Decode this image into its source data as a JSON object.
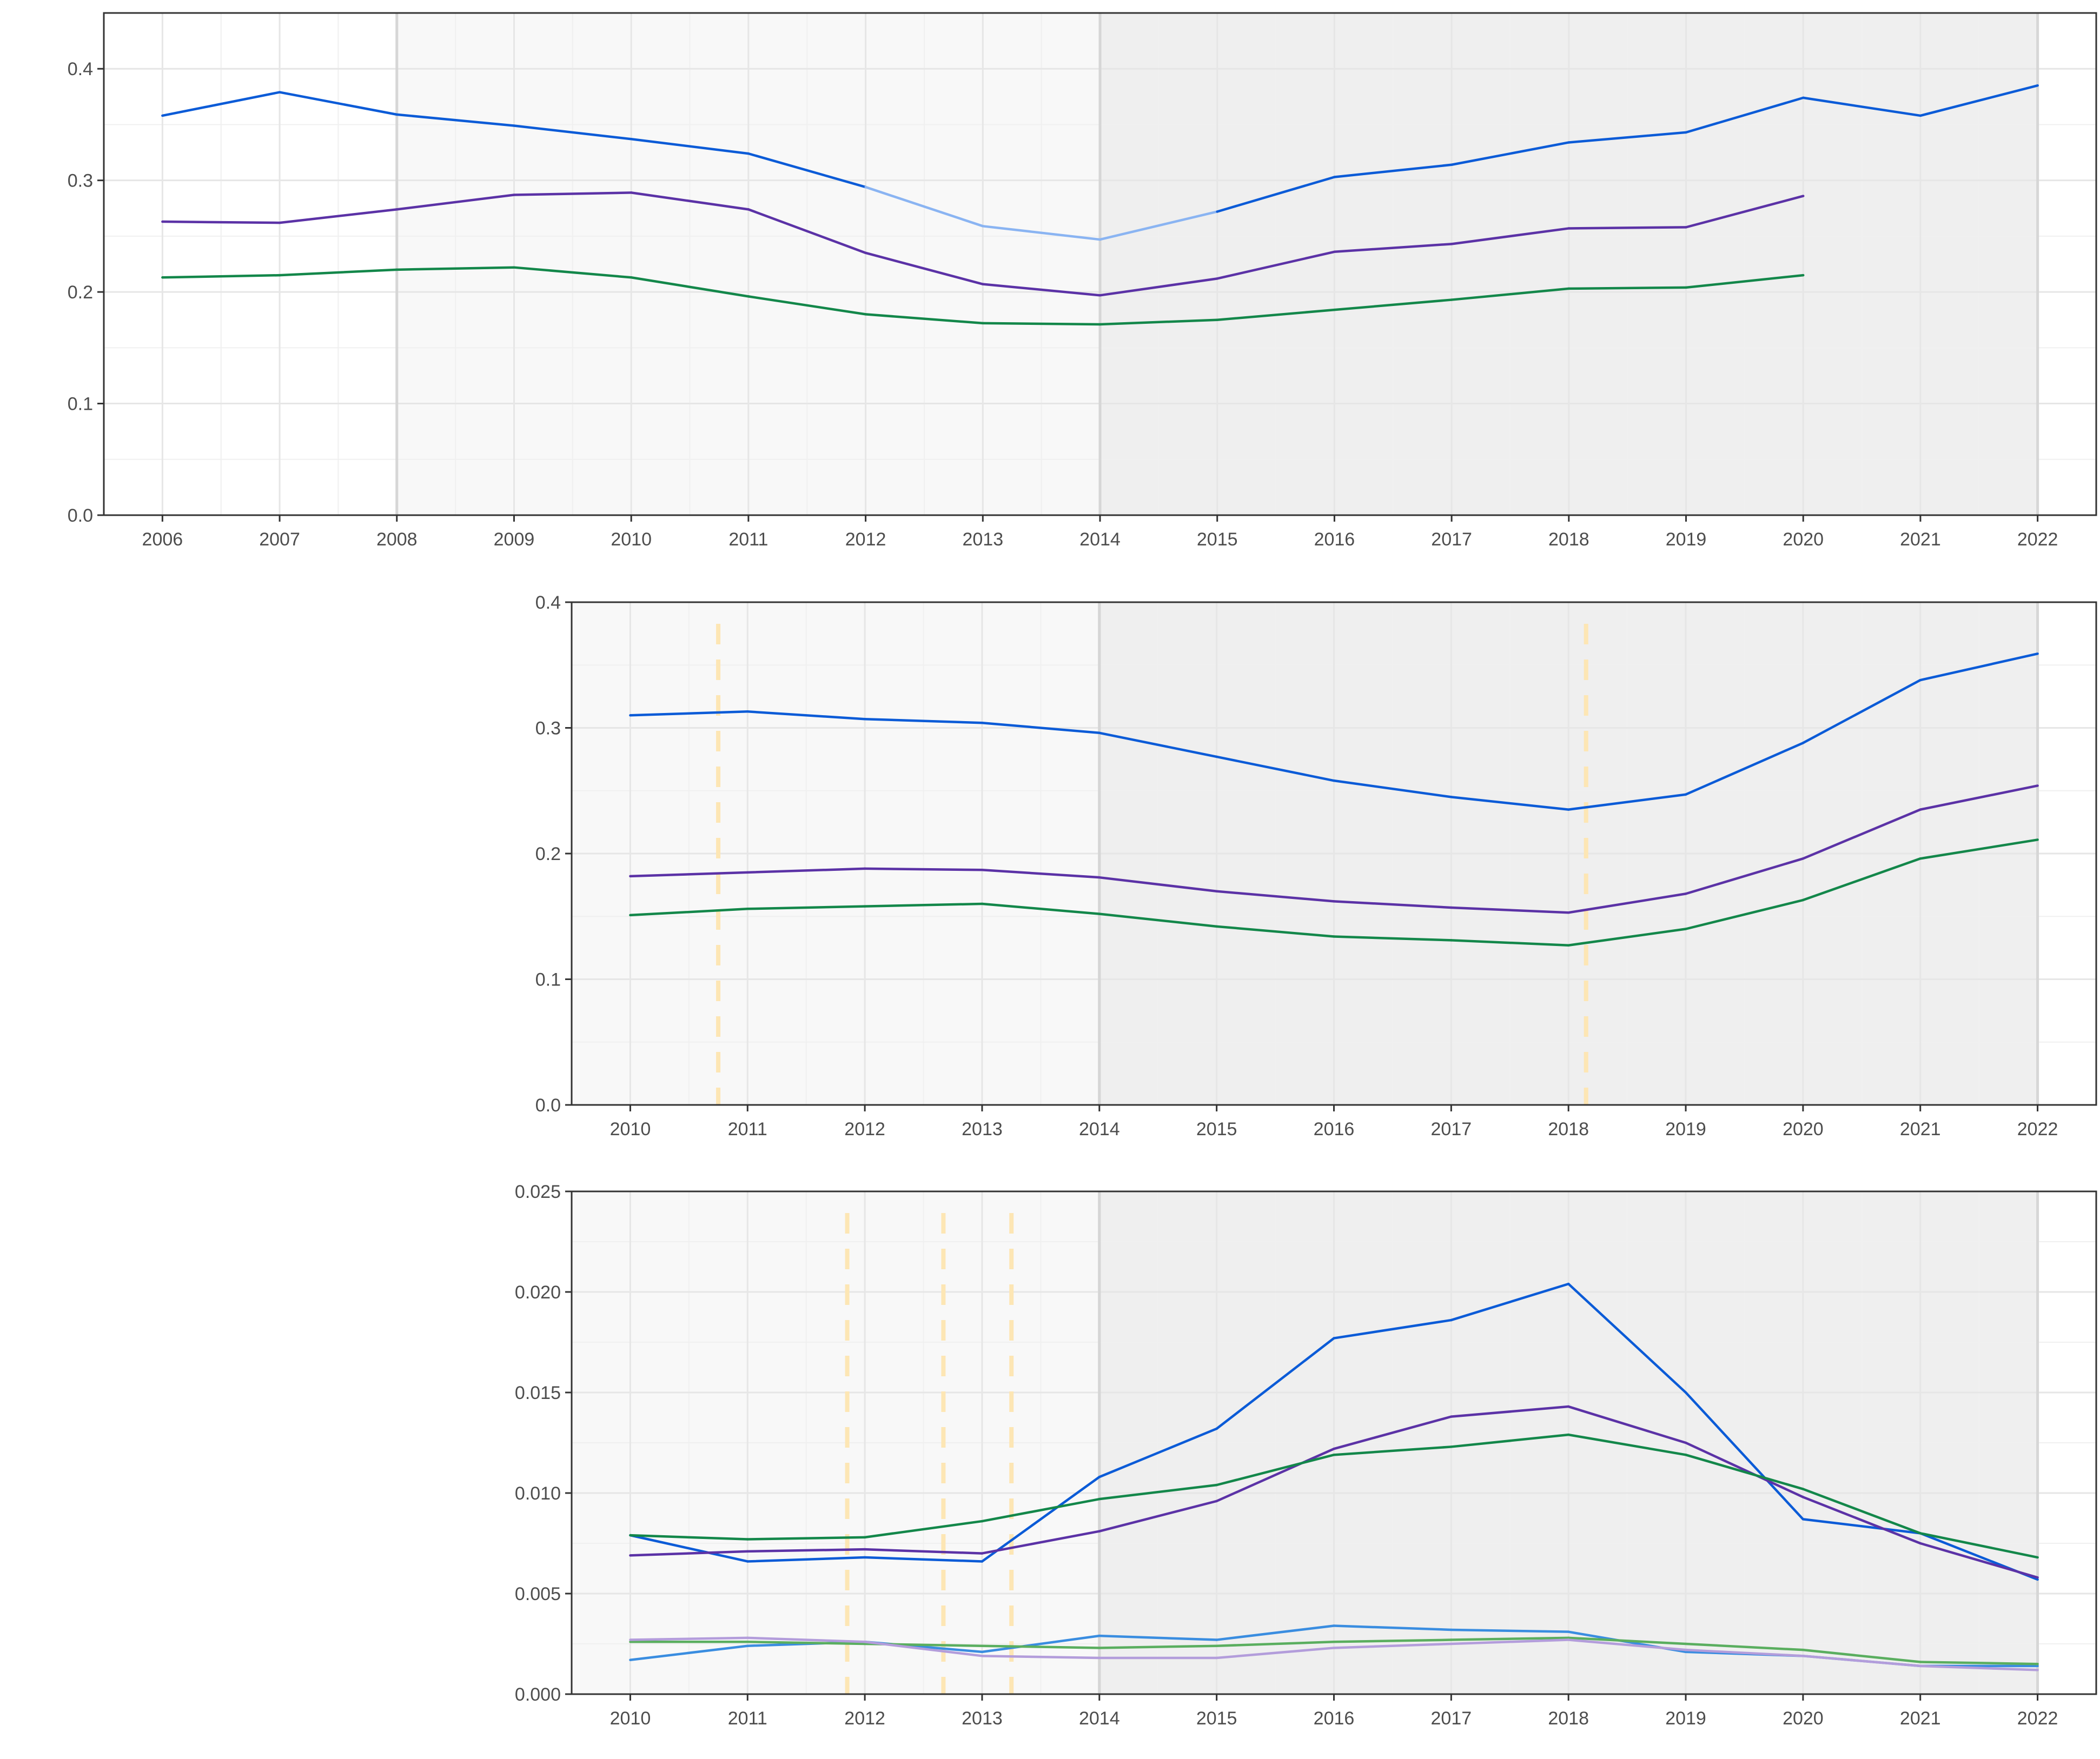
{
  "colors": {
    "band_light": "#f8f8f8",
    "band_dark": "#efefef",
    "grid_major": "#e6e6e6",
    "grid_minor": "#f0f0f0",
    "band_boundary": "#d6d6d6",
    "panel_border": "#333333",
    "tick_text": "#4d4d4d",
    "event_line": "#fde6b4",
    "blue": "#0b5bd7",
    "blue_faded": "#8ab4f2",
    "purple": "#5b32a6",
    "green": "#13874a",
    "light_blue": "#3a8de0",
    "light_green": "#5aae5f",
    "light_purple": "#b39ddb"
  },
  "chart_data": [
    {
      "type": "line",
      "x": [
        2006,
        2007,
        2008,
        2009,
        2010,
        2011,
        2012,
        2013,
        2014,
        2015,
        2016,
        2017,
        2018,
        2019,
        2020,
        2021,
        2022
      ],
      "xlim": [
        2005.5,
        2022.5
      ],
      "ylim": [
        0,
        0.45
      ],
      "x_ticks": [
        "2006",
        "2007",
        "2008",
        "2009",
        "2010",
        "2011",
        "2012",
        "2013",
        "2014",
        "2015",
        "2016",
        "2017",
        "2018",
        "2019",
        "2020",
        "2021",
        "2022"
      ],
      "y_ticks": [
        "0.0",
        "0.1",
        "0.2",
        "0.3",
        "0.4"
      ],
      "y_tick_values": [
        0,
        0.1,
        0.2,
        0.3,
        0.4
      ],
      "shaded_regions": [
        {
          "from": 2008,
          "to": 2014,
          "shade": "light"
        },
        {
          "from": 2014,
          "to": 2022,
          "shade": "dark"
        }
      ],
      "event_lines": [],
      "grid": true,
      "series": [
        {
          "color": "blue",
          "values": [
            0.358,
            0.379,
            0.359,
            0.349,
            0.337,
            0.324,
            0.294,
            0.259,
            0.247,
            0.272,
            0.303,
            0.314,
            0.334,
            0.343,
            0.374,
            0.358,
            0.385
          ],
          "faded_segment": [
            2012,
            2015
          ]
        },
        {
          "color": "purple",
          "values": [
            0.263,
            0.262,
            0.274,
            0.287,
            0.289,
            0.274,
            0.235,
            0.207,
            0.197,
            0.212,
            0.236,
            0.243,
            0.257,
            0.258,
            0.286,
            null,
            null
          ]
        },
        {
          "color": "green",
          "values": [
            0.213,
            0.215,
            0.22,
            0.222,
            0.213,
            0.196,
            0.18,
            0.172,
            0.171,
            0.175,
            0.184,
            0.193,
            0.203,
            0.204,
            0.215,
            null,
            null
          ]
        }
      ]
    },
    {
      "type": "line",
      "x": [
        2010,
        2011,
        2012,
        2013,
        2014,
        2015,
        2016,
        2017,
        2018,
        2019,
        2020,
        2021,
        2022
      ],
      "xlim": [
        2009.5,
        2022.5
      ],
      "ylim": [
        0,
        0.4
      ],
      "x_ticks": [
        "2010",
        "2011",
        "2012",
        "2013",
        "2014",
        "2015",
        "2016",
        "2017",
        "2018",
        "2019",
        "2020",
        "2021",
        "2022"
      ],
      "y_ticks": [
        "0.0",
        "0.1",
        "0.2",
        "0.3",
        "0.4"
      ],
      "y_tick_values": [
        0,
        0.1,
        0.2,
        0.3,
        0.4
      ],
      "shaded_regions": [
        {
          "from": 2009.5,
          "to": 2014,
          "shade": "light"
        },
        {
          "from": 2014,
          "to": 2022,
          "shade": "dark"
        }
      ],
      "event_lines": [
        2010.75,
        2018.15
      ],
      "grid": true,
      "series": [
        {
          "color": "blue",
          "values": [
            0.31,
            0.313,
            0.307,
            0.304,
            0.296,
            0.277,
            0.258,
            0.245,
            0.235,
            0.247,
            0.288,
            0.338,
            0.359
          ]
        },
        {
          "color": "purple",
          "values": [
            0.182,
            0.185,
            0.188,
            0.187,
            0.181,
            0.17,
            0.162,
            0.157,
            0.153,
            0.168,
            0.196,
            0.235,
            0.254
          ]
        },
        {
          "color": "green",
          "values": [
            0.151,
            0.156,
            0.158,
            0.16,
            0.152,
            0.142,
            0.134,
            0.131,
            0.127,
            0.14,
            0.163,
            0.196,
            0.211
          ]
        }
      ]
    },
    {
      "type": "line",
      "x": [
        2010,
        2011,
        2012,
        2013,
        2014,
        2015,
        2016,
        2017,
        2018,
        2019,
        2020,
        2021,
        2022
      ],
      "xlim": [
        2009.5,
        2022.5
      ],
      "ylim": [
        0,
        0.025
      ],
      "x_ticks": [
        "2010",
        "2011",
        "2012",
        "2013",
        "2014",
        "2015",
        "2016",
        "2017",
        "2018",
        "2019",
        "2020",
        "2021",
        "2022"
      ],
      "y_ticks": [
        "0.000",
        "0.005",
        "0.010",
        "0.015",
        "0.020",
        "0.025"
      ],
      "y_tick_values": [
        0,
        0.005,
        0.01,
        0.015,
        0.02,
        0.025
      ],
      "shaded_regions": [
        {
          "from": 2009.5,
          "to": 2014,
          "shade": "light"
        },
        {
          "from": 2014,
          "to": 2022,
          "shade": "dark"
        }
      ],
      "event_lines": [
        2011.85,
        2012.67,
        2013.25
      ],
      "grid": true,
      "series": [
        {
          "color": "blue",
          "values": [
            0.0079,
            0.0066,
            0.0068,
            0.0066,
            0.0108,
            0.0132,
            0.0177,
            0.0186,
            0.0204,
            0.015,
            0.0087,
            0.008,
            0.0057
          ]
        },
        {
          "color": "purple",
          "values": [
            0.0069,
            0.0071,
            0.0072,
            0.007,
            0.0081,
            0.0096,
            0.0122,
            0.0138,
            0.0143,
            0.0125,
            0.0098,
            0.0075,
            0.0058
          ]
        },
        {
          "color": "green",
          "values": [
            0.0079,
            0.0077,
            0.0078,
            0.0086,
            0.0097,
            0.0104,
            0.0119,
            0.0123,
            0.0129,
            0.0119,
            0.0102,
            0.008,
            0.0068
          ]
        },
        {
          "color": "light_blue",
          "values": [
            0.0017,
            0.0024,
            0.0026,
            0.0021,
            0.0029,
            0.0027,
            0.0034,
            0.0032,
            0.0031,
            0.0021,
            0.0019,
            0.0014,
            0.0014
          ]
        },
        {
          "color": "light_green",
          "values": [
            0.0026,
            0.0026,
            0.0025,
            0.0024,
            0.0023,
            0.0024,
            0.0026,
            0.0027,
            0.0028,
            0.0025,
            0.0022,
            0.0016,
            0.0015
          ]
        },
        {
          "color": "light_purple",
          "values": [
            0.0027,
            0.0028,
            0.0026,
            0.0019,
            0.0018,
            0.0018,
            0.0023,
            0.0025,
            0.0027,
            0.0022,
            0.0019,
            0.0014,
            0.0012
          ]
        }
      ]
    }
  ]
}
